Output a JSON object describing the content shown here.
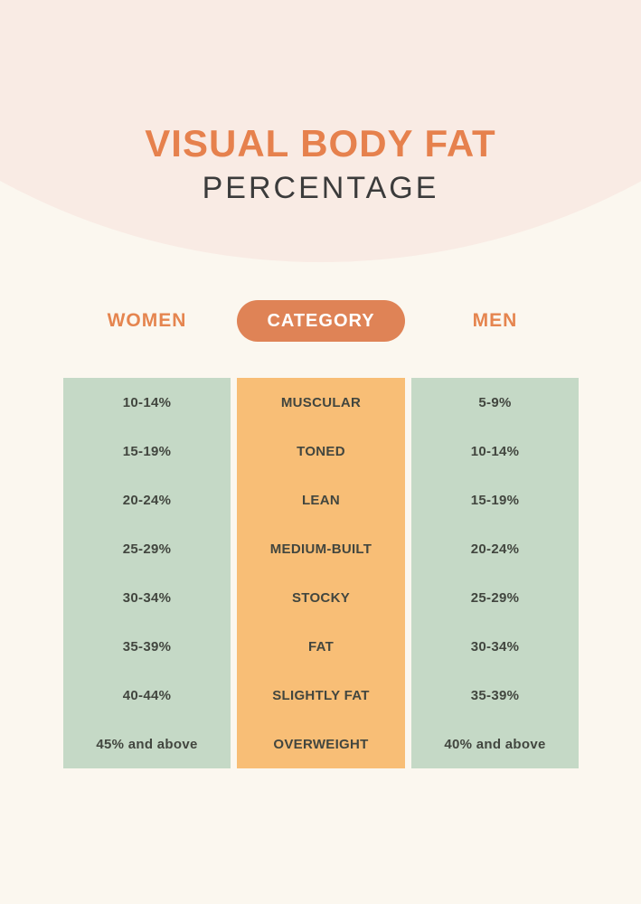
{
  "title": {
    "line1": "VISUAL BODY FAT",
    "line2": "PERCENTAGE"
  },
  "table": {
    "columns": [
      {
        "id": "women",
        "header": "WOMEN",
        "values": [
          "10-14%",
          "15-19%",
          "20-24%",
          "25-29%",
          "30-34%",
          "35-39%",
          "40-44%",
          "45% and above"
        ]
      },
      {
        "id": "category",
        "header": "CATEGORY",
        "values": [
          "MUSCULAR",
          "TONED",
          "LEAN",
          "MEDIUM-BUILT",
          "STOCKY",
          "FAT",
          "SLIGHTLY FAT",
          "OVERWEIGHT"
        ]
      },
      {
        "id": "men",
        "header": "MEN",
        "values": [
          "5-9%",
          "10-14%",
          "15-19%",
          "20-24%",
          "25-29%",
          "30-34%",
          "35-39%",
          "40% and above"
        ]
      }
    ]
  },
  "colors": {
    "background_cream": "#fbf7ef",
    "arc_pink": "#f9ebe4",
    "accent_orange": "#e6814d",
    "pill_orange": "#df8356",
    "column_green": "#c5d9c6",
    "column_orange": "#f8be76",
    "subtitle_dark": "#3b3b3b",
    "cell_text_dark": "#42463f"
  },
  "chart_data": {
    "type": "table",
    "title": "VISUAL BODY FAT PERCENTAGE",
    "columns": [
      "WOMEN",
      "CATEGORY",
      "MEN"
    ],
    "rows": [
      [
        "10-14%",
        "MUSCULAR",
        "5-9%"
      ],
      [
        "15-19%",
        "TONED",
        "10-14%"
      ],
      [
        "20-24%",
        "LEAN",
        "15-19%"
      ],
      [
        "25-29%",
        "MEDIUM-BUILT",
        "20-24%"
      ],
      [
        "30-34%",
        "STOCKY",
        "25-29%"
      ],
      [
        "35-39%",
        "FAT",
        "30-34%"
      ],
      [
        "40-44%",
        "SLIGHTLY FAT",
        "35-39%"
      ],
      [
        "45% and above",
        "OVERWEIGHT",
        "40% and above"
      ]
    ],
    "layout": {
      "legend": "none",
      "grid": "off",
      "notes": "infographic comparison table; women ranges left (green), body-type category center (orange), men ranges right (green)"
    }
  }
}
